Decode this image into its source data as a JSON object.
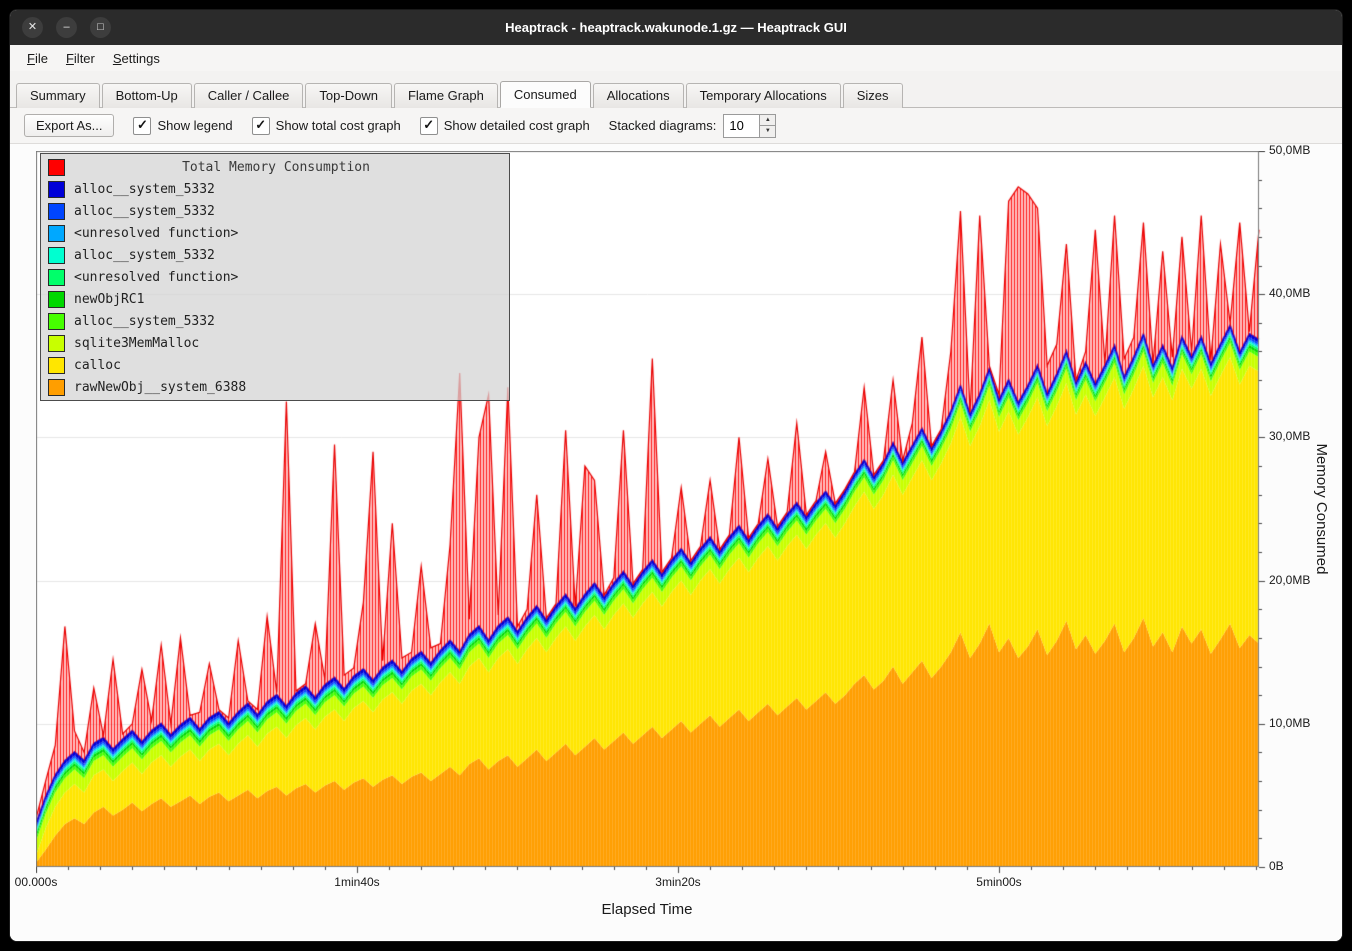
{
  "window": {
    "title": "Heaptrack - heaptrack.wakunode.1.gz — Heaptrack GUI",
    "controls": [
      {
        "name": "close",
        "glyph": "✕"
      },
      {
        "name": "minimize",
        "glyph": "–"
      },
      {
        "name": "maximize",
        "glyph": "□"
      }
    ]
  },
  "menu": {
    "items": [
      "File",
      "Filter",
      "Settings"
    ]
  },
  "tabs": {
    "items": [
      "Summary",
      "Bottom-Up",
      "Caller / Callee",
      "Top-Down",
      "Flame Graph",
      "Consumed",
      "Allocations",
      "Temporary Allocations",
      "Sizes"
    ],
    "active": "Consumed"
  },
  "toolbar": {
    "export_label": "Export As...",
    "checkboxes": [
      {
        "label": "Show legend",
        "checked": true
      },
      {
        "label": "Show total cost graph",
        "checked": true
      },
      {
        "label": "Show detailed cost graph",
        "checked": true
      }
    ],
    "stacked_label": "Stacked diagrams:",
    "stacked_value": "10"
  },
  "chart_data": {
    "type": "area",
    "stacked": true,
    "xlabel": "Elapsed Time",
    "ylabel": "Memory Consumed",
    "dt": 3,
    "x_range": [
      0,
      381
    ],
    "ylim": [
      0,
      50
    ],
    "x_ticks": [
      {
        "value": 0,
        "label": "00.000s"
      },
      {
        "value": 100,
        "label": "1min40s"
      },
      {
        "value": 200,
        "label": "3min20s"
      },
      {
        "value": 300,
        "label": "5min00s"
      }
    ],
    "y_ticks": [
      {
        "value": 0,
        "label": "0B"
      },
      {
        "value": 10,
        "label": "10,0MB"
      },
      {
        "value": 20,
        "label": "20,0MB"
      },
      {
        "value": 30,
        "label": "30,0MB"
      },
      {
        "value": 40,
        "label": "40,0MB"
      },
      {
        "value": 50,
        "label": "50,0MB"
      }
    ],
    "total": {
      "name": "Total Memory Consumption",
      "color": "#ff0000",
      "values": [
        3.4,
        6.0,
        8.5,
        16.8,
        9.5,
        8.0,
        12.5,
        9.0,
        14.5,
        9.3,
        10.0,
        13.8,
        10.2,
        15.5,
        10.0,
        16.0,
        10.4,
        10.8,
        14.2,
        10.6,
        10.4,
        15.8,
        11.2,
        11.0,
        17.5,
        11.6,
        32.5,
        12.0,
        12.3,
        17.0,
        13.1,
        29.5,
        13.4,
        13.9,
        18.5,
        29.0,
        14.4,
        24.0,
        14.6,
        15.0,
        21.0,
        15.3,
        15.6,
        22.5,
        34.5,
        17.3,
        30.0,
        33.0,
        17.6,
        33.5,
        16.8,
        18.0,
        26.0,
        17.2,
        18.4,
        30.5,
        17.8,
        28.0,
        27.0,
        18.2,
        20.2,
        30.5,
        19.2,
        19.8,
        35.5,
        19.6,
        20.0,
        26.5,
        20.1,
        20.5,
        27.0,
        20.4,
        21.0,
        30.0,
        20.8,
        21.4,
        28.5,
        21.2,
        21.8,
        31.0,
        21.6,
        22.2,
        29.0,
        22.0,
        22.6,
        25.5,
        33.5,
        23.2,
        24.0,
        34.0,
        24.6,
        31.0,
        37.0,
        25.4,
        26.0,
        36.0,
        45.8,
        27.0,
        45.5,
        31.0,
        33.0,
        46.5,
        47.5,
        47.0,
        46.0,
        35.0,
        36.5,
        43.5,
        34.0,
        36.0,
        44.5,
        35.0,
        45.5,
        35.5,
        37.0,
        45.0,
        35.2,
        43.0,
        35.6,
        44.0,
        36.0,
        45.5,
        35.4,
        43.5,
        36.2,
        45.0,
        37.0,
        44.5
      ]
    },
    "series": [
      {
        "name": "alloc__system_5332",
        "color": "#0000d8",
        "thickness": 0.25
      },
      {
        "name": "alloc__system_5332",
        "color": "#0045ff",
        "thickness": 0.15
      },
      {
        "name": "<unresolved function>",
        "color": "#00a8ff",
        "thickness": 0.12
      },
      {
        "name": "alloc__system_5332",
        "color": "#00ffd0",
        "thickness": 0.12
      },
      {
        "name": "<unresolved function>",
        "color": "#00ff6a",
        "thickness": 0.15
      },
      {
        "name": "newObjRC1",
        "color": "#00d800",
        "thickness": 0.2
      },
      {
        "name": "alloc__system_5332",
        "color": "#46ff00",
        "thickness": 0.25
      },
      {
        "name": "sqlite3MemMalloc",
        "color": "#c8ff00",
        "thickness": 1.0
      },
      {
        "name": "calloc",
        "color": "#ffe600",
        "values": [
          0.5,
          1.5,
          2.0,
          2.2,
          2.4,
          2.2,
          2.6,
          2.6,
          2.4,
          2.7,
          2.8,
          2.6,
          2.9,
          3.0,
          2.8,
          3.1,
          3.2,
          3.0,
          3.3,
          3.4,
          3.2,
          3.6,
          3.8,
          3.6,
          4.0,
          4.2,
          4.0,
          4.4,
          4.6,
          4.4,
          4.8,
          5.0,
          4.8,
          5.2,
          5.4,
          5.2,
          5.6,
          5.8,
          5.6,
          6.0,
          6.2,
          6.0,
          6.4,
          6.6,
          6.4,
          6.8,
          7.0,
          6.8,
          7.2,
          7.4,
          7.2,
          7.6,
          7.8,
          7.6,
          8.0,
          8.2,
          8.0,
          8.4,
          8.6,
          8.4,
          8.8,
          9.0,
          8.8,
          9.2,
          9.4,
          9.2,
          9.6,
          9.8,
          9.6,
          10.0,
          10.2,
          10.0,
          10.4,
          10.6,
          10.4,
          10.8,
          11.0,
          10.8,
          11.2,
          11.4,
          11.2,
          11.6,
          11.8,
          11.6,
          12.0,
          12.4,
          12.8,
          12.6,
          13.0,
          13.4,
          13.2,
          13.6,
          14.0,
          13.8,
          14.2,
          14.6,
          15.0,
          14.8,
          15.2,
          15.6,
          15.4,
          15.8,
          15.6,
          16.0,
          16.2,
          16.0,
          16.4,
          16.6,
          16.4,
          16.8,
          16.6,
          17.0,
          17.2,
          17.0,
          17.4,
          17.6,
          17.4,
          17.8,
          17.6,
          18.0,
          17.8,
          18.2,
          18.0,
          18.4,
          18.6,
          18.4,
          18.8,
          19.0
        ]
      },
      {
        "name": "rawNewObj__system_6388",
        "color": "#ff9e00",
        "values": [
          0.3,
          1.2,
          2.2,
          3.0,
          3.4,
          3.0,
          3.8,
          4.2,
          3.6,
          4.0,
          4.5,
          3.9,
          4.4,
          4.8,
          4.2,
          4.6,
          5.0,
          4.4,
          4.9,
          5.2,
          4.6,
          5.0,
          5.4,
          4.8,
          5.3,
          5.6,
          5.0,
          5.5,
          5.8,
          5.2,
          5.7,
          6.0,
          5.4,
          5.9,
          6.2,
          5.6,
          6.1,
          6.4,
          5.8,
          6.3,
          6.6,
          6.0,
          6.5,
          7.0,
          6.4,
          7.2,
          7.6,
          6.8,
          7.4,
          7.8,
          7.0,
          7.6,
          8.2,
          7.4,
          8.0,
          8.6,
          7.8,
          8.4,
          9.0,
          8.2,
          8.8,
          9.4,
          8.6,
          9.2,
          9.8,
          9.0,
          9.6,
          10.2,
          9.4,
          10.0,
          10.6,
          9.8,
          10.4,
          11.0,
          10.2,
          10.8,
          11.4,
          10.6,
          11.2,
          11.8,
          11.0,
          11.6,
          12.2,
          11.4,
          12.0,
          12.8,
          13.4,
          12.4,
          13.0,
          14.0,
          12.8,
          13.6,
          14.4,
          13.2,
          14.0,
          15.0,
          16.4,
          14.6,
          15.6,
          17.0,
          15.0,
          16.0,
          14.6,
          15.4,
          16.6,
          14.8,
          15.8,
          17.2,
          15.2,
          16.2,
          14.9,
          15.8,
          17.0,
          15.0,
          16.0,
          17.4,
          15.4,
          16.4,
          15.0,
          16.8,
          15.6,
          16.6,
          14.9,
          15.9,
          17.0,
          15.3,
          16.2,
          15.6
        ]
      }
    ]
  }
}
